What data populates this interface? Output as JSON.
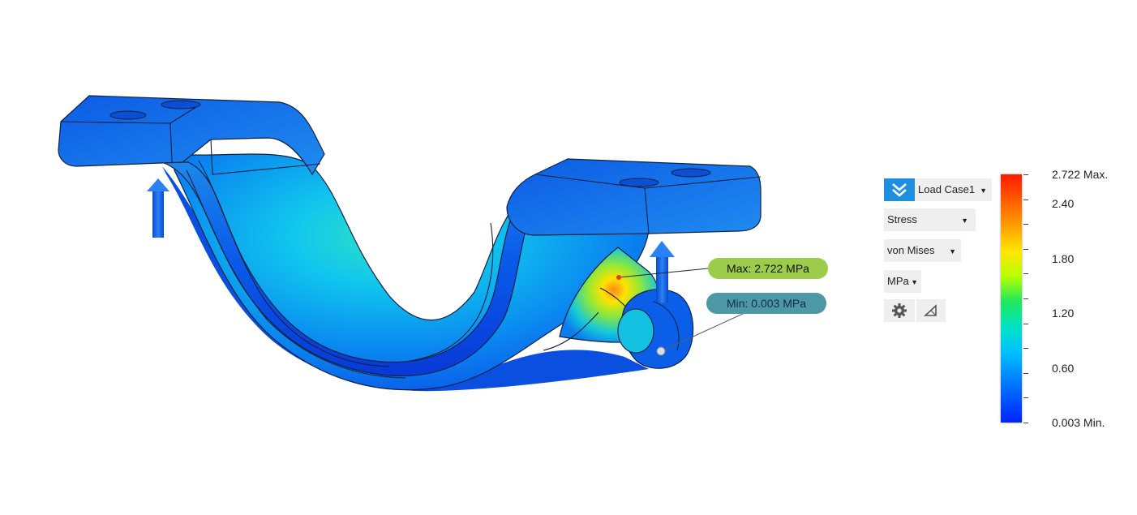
{
  "markers": {
    "max_label": "Max: 2.722 MPa",
    "min_label": "Min: 0.003 MPa"
  },
  "controls": {
    "load_case": "Load Case1",
    "result_type": "Stress",
    "stress_type": "von Mises",
    "unit": "MPa",
    "icons": {
      "load_case": "double-chevron-check-icon",
      "settings": "gear-icon",
      "probe": "triangle-probe-icon"
    }
  },
  "legend": {
    "max_label": "2.722 Max.",
    "min_label": "0.003 Min.",
    "ticks": [
      "2.40",
      "1.80",
      "1.20",
      "0.60"
    ],
    "max_value": 2.722,
    "min_value": 0.003,
    "colormap": [
      "#ff1a00",
      "#ffe600",
      "#22e85a",
      "#00e2c8",
      "#0022ff"
    ]
  },
  "colors": {
    "accent": "#1c8fe0",
    "max_tag": "#9ccc4a",
    "min_tag": "#4e98a6",
    "load_arrow": "#1565e8"
  }
}
